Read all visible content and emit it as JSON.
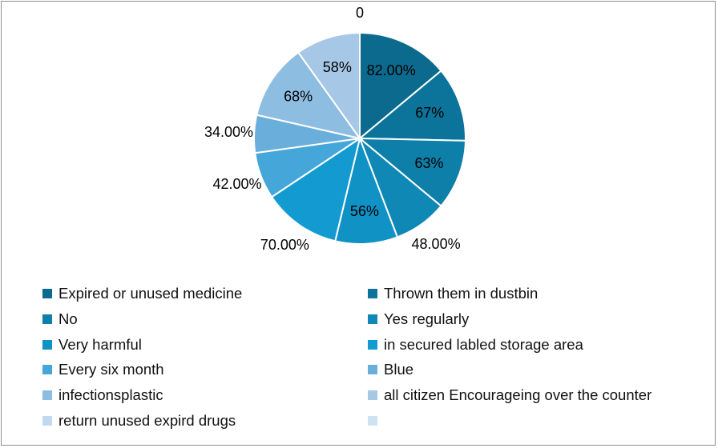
{
  "chart_data": {
    "type": "pie",
    "title": "",
    "categories": [
      "Expired or unused medicine",
      "Thrown them in dustbin",
      "No",
      "Yes regularly",
      "Very harmful",
      "in secured labled storage area",
      "Every six month",
      "Blue",
      "infectionsplastic",
      "all citizen Encourageing over the counter",
      "return unused expird drugs",
      ""
    ],
    "values": [
      82,
      67,
      63,
      48,
      56,
      70,
      42,
      34,
      68,
      58,
      0,
      null
    ],
    "data_labels": [
      "82.00%",
      "67%",
      "63%",
      "48.00%",
      "56%",
      "70.00%",
      "42.00%",
      "34.00%",
      "68%",
      "58%",
      "0",
      ""
    ],
    "colors": [
      "#0b6a8e",
      "#0c749b",
      "#0e7fa9",
      "#0f88b6",
      "#1092c4",
      "#139bd1",
      "#45a6da",
      "#6aaedc",
      "#8ebde2",
      "#a6c8e6",
      "#c0d9ee",
      "#cfe2f2"
    ],
    "legend_position": "bottom",
    "start_angle": "top, clockwise"
  }
}
